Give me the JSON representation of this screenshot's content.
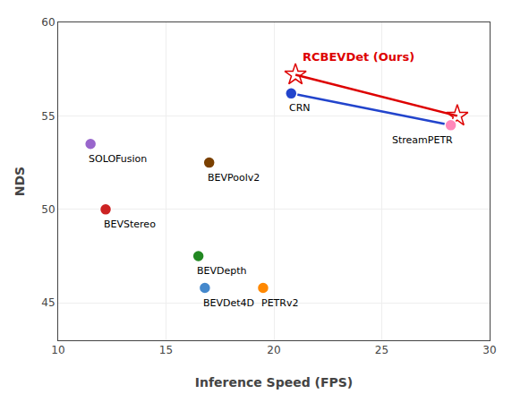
{
  "chart_data": {
    "type": "scatter",
    "xlabel": "Inference Speed (FPS)",
    "ylabel": "NDS",
    "xlim": [
      10,
      30
    ],
    "ylim": [
      43,
      60
    ],
    "xticks": [
      10,
      15,
      20,
      25,
      30
    ],
    "yticks": [
      45,
      50,
      55,
      60
    ],
    "grid": true,
    "series": [
      {
        "type": "line",
        "color": "#2244cc",
        "x": [
          20.8,
          28.2
        ],
        "y": [
          56.2,
          54.5
        ]
      },
      {
        "type": "line",
        "color": "#dd0000",
        "marker": "star",
        "label": "RCBEVDet (Ours)",
        "x": [
          21.0,
          28.5
        ],
        "y": [
          57.2,
          55.0
        ]
      },
      {
        "type": "scatter",
        "marker": "circle",
        "labels": [
          "SOLOFusion",
          "BEVStereo",
          "BEVPoolv2",
          "BEVDepth",
          "BEVDet4D",
          "PETRv2",
          "CRN",
          "StreamPETR"
        ],
        "x": [
          11.5,
          12.2,
          17.0,
          16.5,
          16.8,
          19.5,
          20.8,
          28.2
        ],
        "y": [
          53.5,
          50.0,
          52.5,
          47.5,
          45.8,
          45.8,
          56.2,
          54.5
        ],
        "colors": [
          "#9966cc",
          "#cc2222",
          "#7a4000",
          "#228822",
          "#4488cc",
          "#ff8800",
          "#2244cc",
          "#ff88bb"
        ]
      }
    ]
  }
}
